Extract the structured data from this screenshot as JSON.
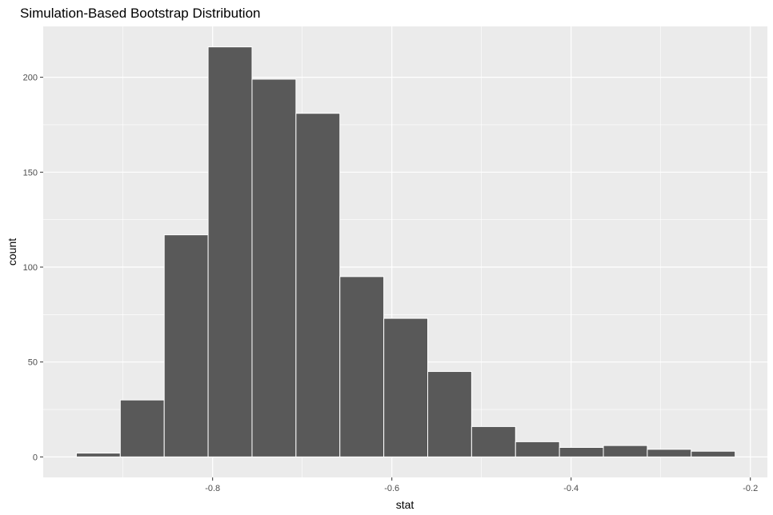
{
  "chart_data": {
    "type": "bar",
    "title": "Simulation-Based Bootstrap Distribution",
    "xlabel": "stat",
    "ylabel": "count",
    "bin_width": 0.049,
    "bins": [
      {
        "xmin": -0.952,
        "xmax": -0.903,
        "count": 2
      },
      {
        "xmin": -0.903,
        "xmax": -0.854,
        "count": 30
      },
      {
        "xmin": -0.854,
        "xmax": -0.805,
        "count": 117
      },
      {
        "xmin": -0.805,
        "xmax": -0.756,
        "count": 216
      },
      {
        "xmin": -0.756,
        "xmax": -0.707,
        "count": 199
      },
      {
        "xmin": -0.707,
        "xmax": -0.658,
        "count": 181
      },
      {
        "xmin": -0.658,
        "xmax": -0.609,
        "count": 95
      },
      {
        "xmin": -0.609,
        "xmax": -0.56,
        "count": 73
      },
      {
        "xmin": -0.56,
        "xmax": -0.511,
        "count": 45
      },
      {
        "xmin": -0.511,
        "xmax": -0.462,
        "count": 16
      },
      {
        "xmin": -0.462,
        "xmax": -0.413,
        "count": 8
      },
      {
        "xmin": -0.413,
        "xmax": -0.364,
        "count": 5
      },
      {
        "xmin": -0.364,
        "xmax": -0.315,
        "count": 6
      },
      {
        "xmin": -0.315,
        "xmax": -0.266,
        "count": 4
      },
      {
        "xmin": -0.266,
        "xmax": -0.217,
        "count": 3
      }
    ],
    "xlim": [
      -0.989,
      -0.181
    ],
    "ylim": [
      -10.8,
      226.8
    ],
    "x_ticks": [
      -0.8,
      -0.6,
      -0.4,
      -0.2
    ],
    "x_tick_labels": [
      "-0.8",
      "-0.6",
      "-0.4",
      "-0.2"
    ],
    "y_ticks": [
      0,
      50,
      100,
      150,
      200
    ],
    "y_tick_labels": [
      "0",
      "50",
      "100",
      "150",
      "200"
    ],
    "grid": true,
    "colors": {
      "panel_background": "#ebebeb",
      "grid": "#ffffff",
      "bar_fill": "#595959",
      "bar_outline": "#ffffff",
      "tick_text": "#4d4d4d"
    }
  }
}
